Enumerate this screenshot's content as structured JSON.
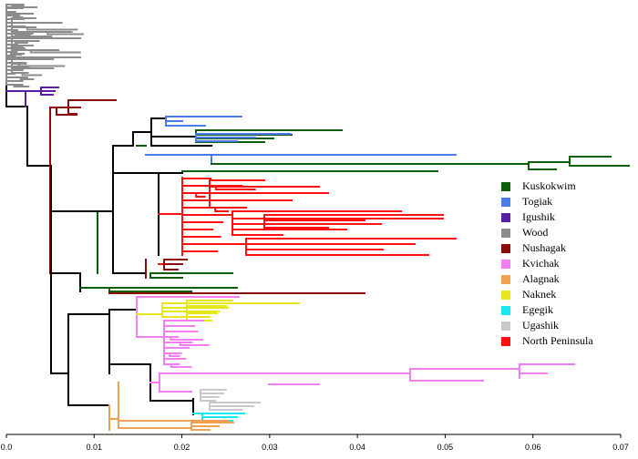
{
  "colors": {
    "backbone": "#000000",
    "Kuskokwim": "#0b5e0b",
    "Togiak": "#4a7be8",
    "Igushik": "#5a1ea0",
    "Wood": "#8c8c8c",
    "Nushagak": "#8b0a0a",
    "Kvichak": "#f27ef2",
    "Alagnak": "#f0a050",
    "Naknek": "#e6e61a",
    "Egegik": "#1ae6f0",
    "Ugashik": "#c8c8c8",
    "North Peninsula": "#ff1010"
  },
  "legend": [
    {
      "label": "Kuskokwim",
      "color": "#0b5e0b"
    },
    {
      "label": "Togiak",
      "color": "#4a7be8"
    },
    {
      "label": "Igushik",
      "color": "#5a1ea0"
    },
    {
      "label": "Wood",
      "color": "#8c8c8c"
    },
    {
      "label": "Nushagak",
      "color": "#8b0a0a"
    },
    {
      "label": "Kvichak",
      "color": "#f27ef2"
    },
    {
      "label": "Alagnak",
      "color": "#f0a050"
    },
    {
      "label": "Naknek",
      "color": "#e6e61a"
    },
    {
      "label": "Egegik",
      "color": "#1ae6f0"
    },
    {
      "label": "Ugashik",
      "color": "#c8c8c8"
    },
    {
      "label": "North Peninsula",
      "color": "#ff1010"
    }
  ],
  "axis": {
    "ticks": [
      "0.0",
      "0.01",
      "0.02",
      "0.03",
      "0.04",
      "0.05",
      "0.06",
      "0.07"
    ],
    "min": 0.0,
    "max": 0.07
  }
}
